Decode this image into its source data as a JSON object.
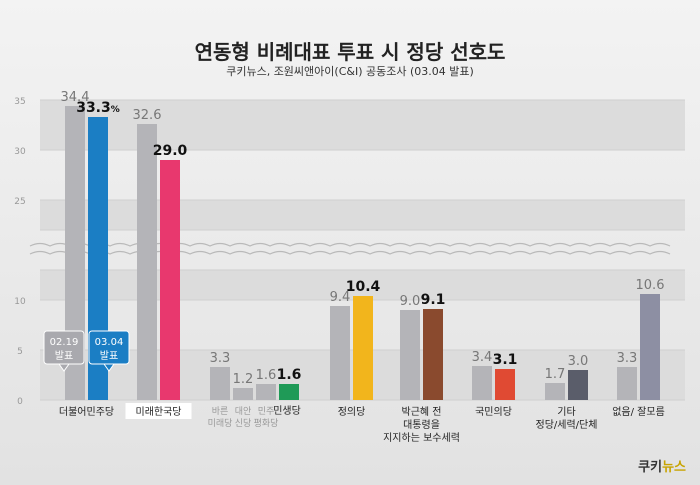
{
  "header": {
    "title": "연동형 비례대표 투표 시 정당 선호도",
    "subtitle": "쿠키뉴스, 조원씨앤아이(C&I) 공동조사 (03.04 발표)"
  },
  "logo": {
    "part1": "쿠키",
    "part2": "뉴스"
  },
  "legend": {
    "old": "02.19\n발표",
    "new": "03.04\n발표"
  },
  "chart_data": {
    "type": "bar",
    "title": "연동형 비례대표 투표 시 정당 선호도",
    "subtitle": "쿠키뉴스, 조원씨앤아이(C&I) 공동조사 (03.04 발표)",
    "y_ticks_lower": [
      "0",
      "5",
      "10"
    ],
    "y_ticks_upper": [
      "25",
      "30",
      "35"
    ],
    "axis_break": [
      13,
      22
    ],
    "ylim": [
      0,
      35
    ],
    "series": [
      {
        "name": "02.19 발표",
        "color": "#b4b4b8"
      },
      {
        "name": "03.04 발표",
        "color": "#1b7ec4"
      }
    ],
    "groups": [
      {
        "label": "더불어민주당",
        "bars": [
          {
            "value": 34.4,
            "label": "34.4",
            "color": "#b4b4b8"
          },
          {
            "value": 33.3,
            "label": "33.3",
            "unit": "%",
            "color": "#1b7ec4",
            "bold": true
          }
        ]
      },
      {
        "label": "미래한국당",
        "boxed": true,
        "bars": [
          {
            "value": 32.6,
            "label": "32.6",
            "color": "#b4b4b8"
          },
          {
            "value": 29.0,
            "label": "29.0",
            "color": "#e8386e",
            "bold": true
          }
        ]
      },
      {
        "label": "",
        "sublabels": [
          "바른\n미래당",
          "대안\n신당",
          "민주\n평화당"
        ],
        "newlabel": "민생당",
        "bars": [
          {
            "value": 3.3,
            "label": "3.3",
            "color": "#b4b4b8"
          },
          {
            "value": 1.2,
            "label": "1.2",
            "color": "#b4b4b8"
          },
          {
            "value": 1.6,
            "label": "1.6",
            "color": "#b4b4b8"
          },
          {
            "value": 1.6,
            "label": "1.6",
            "color": "#1f9a57",
            "bold": true
          }
        ]
      },
      {
        "label": "정의당",
        "bars": [
          {
            "value": 9.4,
            "label": "9.4",
            "color": "#b4b4b8"
          },
          {
            "value": 10.4,
            "label": "10.4",
            "color": "#f2b51c",
            "bold": true
          }
        ]
      },
      {
        "label": "박근혜 전\n대통령을\n지지하는 보수세력",
        "bars": [
          {
            "value": 9.0,
            "label": "9.0",
            "color": "#b4b4b8"
          },
          {
            "value": 9.1,
            "label": "9.1",
            "color": "#8a4a2e",
            "bold": true
          }
        ]
      },
      {
        "label": "국민의당",
        "bars": [
          {
            "value": 3.4,
            "label": "3.4",
            "color": "#b4b4b8"
          },
          {
            "value": 3.1,
            "label": "3.1",
            "color": "#e04a33",
            "bold": true
          }
        ]
      },
      {
        "label": "기타\n정당/세력/단체",
        "bars": [
          {
            "value": 1.7,
            "label": "1.7",
            "color": "#b4b4b8"
          },
          {
            "value": 3.0,
            "label": "3.0",
            "color": "#5a5d6a"
          }
        ]
      },
      {
        "label": "없음/ 잘모름",
        "bars": [
          {
            "value": 3.3,
            "label": "3.3",
            "color": "#b4b4b8"
          },
          {
            "value": 10.6,
            "label": "10.6",
            "color": "#8d8fa3"
          }
        ]
      }
    ]
  }
}
